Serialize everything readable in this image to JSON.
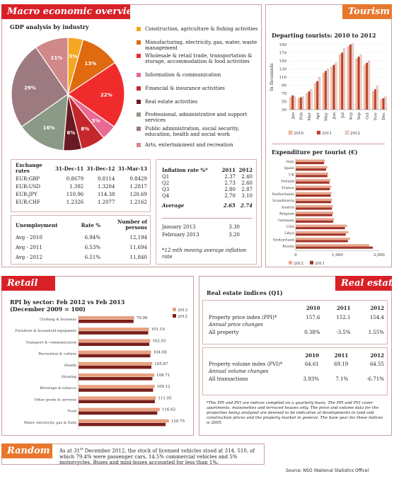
{
  "macro": {
    "title": "Macro economic overview",
    "gdp_title": "GDP analysis by industry",
    "gdp_legend": [
      {
        "label": "Construction, agriculture & fishing activities",
        "color": "#f5a623",
        "pct": "5%"
      },
      {
        "label": "Manufacturing, electricity, gas, water, waste management",
        "color": "#e06a10",
        "pct": "13%"
      },
      {
        "label": "Wholesale & retail trade, transportation & storage, accommodation & food activities",
        "color": "#ef2b2b",
        "pct": "22%"
      },
      {
        "label": "Information & communication",
        "color": "#e96a93",
        "pct": "5%"
      },
      {
        "label": "Financial & insurance activities",
        "color": "#c4282c",
        "pct": "8%"
      },
      {
        "label": "Real estate activities",
        "color": "#6a1a22",
        "pct": "6%"
      },
      {
        "label": "Professional, administrative and support services",
        "color": "#8a9a86",
        "pct": "16%"
      },
      {
        "label": "Public administration, social security, education, health and social work",
        "color": "#9c7a80",
        "pct": "29%"
      },
      {
        "label": "Arts, entertainment and recreation",
        "color": "#d08888",
        "pct": "11%"
      }
    ],
    "exchange": {
      "header": [
        "Exchange rates",
        "31-Dec-11",
        "31-Dec-12",
        "31-Mar-13"
      ],
      "rows": [
        [
          "EUR:GBP",
          "0.8679",
          "0.8114",
          "0.8429"
        ],
        [
          "EUR:USD",
          "1.392",
          "1.3204",
          "1.2817"
        ],
        [
          "EUR:JPY",
          "110.96",
          "114.38",
          "120.69"
        ],
        [
          "EUR:CHF",
          "1.2326",
          "1.2077",
          "1.2162"
        ]
      ]
    },
    "unemployment": {
      "header": [
        "Unemployment",
        "Rate %",
        "Number of persons"
      ],
      "rows": [
        [
          "Avg - 2010",
          "6.94%",
          "12,194"
        ],
        [
          "Avg - 2011",
          "6.53%",
          "11,694"
        ],
        [
          "Avg - 2012",
          "6.51%",
          "11,840"
        ]
      ]
    },
    "inflation": {
      "header": [
        "Inflation rate %*",
        "2011",
        "2012"
      ],
      "rows": [
        [
          "Q1",
          "2.37",
          "2.40"
        ],
        [
          "Q2",
          "2.73",
          "2.60"
        ],
        [
          "Q3",
          "2.80",
          "2.87"
        ],
        [
          "Q4",
          "2.70",
          "3.10"
        ]
      ],
      "avg": [
        "Average",
        "2.65",
        "2.74"
      ],
      "months": [
        [
          "January 2013",
          "3.30"
        ],
        [
          "February 2013",
          "3.20"
        ]
      ],
      "note": "*12 mth moving average inflation rate"
    }
  },
  "tourism": {
    "title": "Tourism",
    "chart1_title": "Departing tourists: 2010 to 2012",
    "chart2_title": "Expenditure per tourist (€)"
  },
  "chart_data": [
    {
      "type": "pie",
      "title": "GDP analysis by industry",
      "categories": [
        "Construction, agriculture & fishing activities",
        "Manufacturing, electricity, gas, water, waste management",
        "Wholesale & retail trade, transportation & storage, accommodation & food activities",
        "Information & communication",
        "Financial & insurance activities",
        "Real estate activities",
        "Professional, administrative and support services",
        "Public administration, social security, education, health and social work",
        "Arts, entertainment and recreation"
      ],
      "values": [
        5,
        13,
        22,
        5,
        8,
        6,
        16,
        29,
        11
      ]
    },
    {
      "type": "bar",
      "title": "Departing tourists: 2010 to 2012",
      "ylabel": "In thousands",
      "ylim": [
        30,
        190
      ],
      "yticks": [
        30,
        50,
        70,
        90,
        110,
        130,
        150,
        170,
        190
      ],
      "categories": [
        "Jan",
        "Feb",
        "Mar",
        "Apr",
        "May",
        "Jun",
        "Jul",
        "Aug",
        "Sep",
        "Oct",
        "Nov",
        "Dec"
      ],
      "series": [
        {
          "name": "2010",
          "color": "#f3c2a0",
          "values": [
            60,
            58,
            70,
            95,
            120,
            135,
            165,
            185,
            155,
            140,
            75,
            55
          ]
        },
        {
          "name": "2011",
          "color": "#b8402a",
          "values": [
            65,
            60,
            75,
            100,
            125,
            140,
            170,
            190,
            160,
            145,
            80,
            58
          ]
        },
        {
          "name": "2012",
          "color": "#ecd5d0",
          "values": [
            62,
            62,
            80,
            110,
            130,
            145,
            180,
            192,
            165,
            150,
            88,
            62
          ]
        }
      ]
    },
    {
      "type": "bar",
      "title": "Expenditure per tourist (€)",
      "orientation": "horizontal",
      "xlim": [
        0,
        2000
      ],
      "xticks": [
        "0",
        "1,000",
        "2,000"
      ],
      "categories": [
        "Italy",
        "Spain",
        "UK",
        "Ireland",
        "France",
        "Netherlands",
        "Scandinavia",
        "Austria",
        "Belgium",
        "Germany",
        "USA",
        "Libya",
        "Switzerland",
        "Russia"
      ],
      "series": [
        {
          "name": "2012",
          "color": "#e9a78e",
          "values": [
            700,
            760,
            780,
            830,
            850,
            860,
            870,
            890,
            900,
            920,
            1230,
            1260,
            1300,
            1760
          ]
        },
        {
          "name": "2011",
          "color": "#a23528",
          "values": [
            680,
            730,
            760,
            810,
            820,
            840,
            850,
            870,
            880,
            900,
            1180,
            1200,
            1250,
            1850
          ]
        }
      ]
    },
    {
      "type": "bar",
      "title": "RPI by sector: Feb 2012 vs Feb 2013 (December 2009 = 100)",
      "orientation": "horizontal",
      "categories": [
        "Clothing & footwear",
        "Furniture & household equipment",
        "Transport & communication",
        "Recreation & culture",
        "Health",
        "Housing",
        "Beverage & tobacco",
        "Other goods & services",
        "Food",
        "Water, electricity, gas & fuels"
      ],
      "series": [
        {
          "name": "2013",
          "color": "#e8a07f",
          "values": [
            79.96,
            101.19,
            102.93,
            104.08,
            105.87,
            108.71,
            109.12,
            111.05,
            116.62,
            129.75
          ]
        },
        {
          "name": "2012",
          "color": "#7a1f1a",
          "values": [
            79.0,
            100.0,
            101.5,
            103.0,
            104.5,
            106.0,
            107.0,
            109.5,
            113.0,
            125.0
          ]
        }
      ],
      "data_labels": [
        "79.96",
        "101.19",
        "102.93",
        "104.08",
        "105.87",
        "108.71",
        "109.12",
        "111.05",
        "116.62",
        "129.75"
      ]
    }
  ],
  "retail": {
    "title": "Retail",
    "chart_title1": "RPI by sector: Feb 2012 vs Feb 2013",
    "chart_title2": "(December 2009 = 100)"
  },
  "realestate": {
    "title": "Real estate",
    "subtitle": "Real estate indices (Q1)",
    "years": [
      "2010",
      "2011",
      "2012"
    ],
    "ppi_label": "Property price index (PPI)*",
    "ppi_values": [
      "157.6",
      "152.1",
      "154.4"
    ],
    "ppi_change_label": "Annual price changes",
    "all_property_label": "All property",
    "all_property_values": [
      "0.38%",
      "-3.5%",
      "1.55%"
    ],
    "pvi_label": "Property volume index (PVI)*",
    "pvi_values": [
      "64.61",
      "69.19",
      "64.55"
    ],
    "pvi_change_label": "Annual volume changes",
    "all_trans_label": "All transactions",
    "all_trans_values": [
      "3.93%",
      "7.1%",
      "-6.71%"
    ],
    "note": "*The PPI and PVI are indices compiled on a quarterly basis. The PPI and PVI cover apartments, maisonettes and terraced houses only. The price and volume data for the properties being analysed are deemed to be indicative of developments in land and construction prices and the property market in general. The base year for these indices is 2005."
  },
  "random": {
    "title": "Random",
    "text_pre": "As at 31",
    "text_sup": "st",
    "text_post": " December 2012, the stock of licensed vehicles stood at 314, 510, of which 79.4% were passenger cars, 14.5% commercial vehicles and 5% motorcycles. Buses and mini-buses accounted for less than 1%."
  },
  "source": "Source: NSO (National Statistics Office)"
}
